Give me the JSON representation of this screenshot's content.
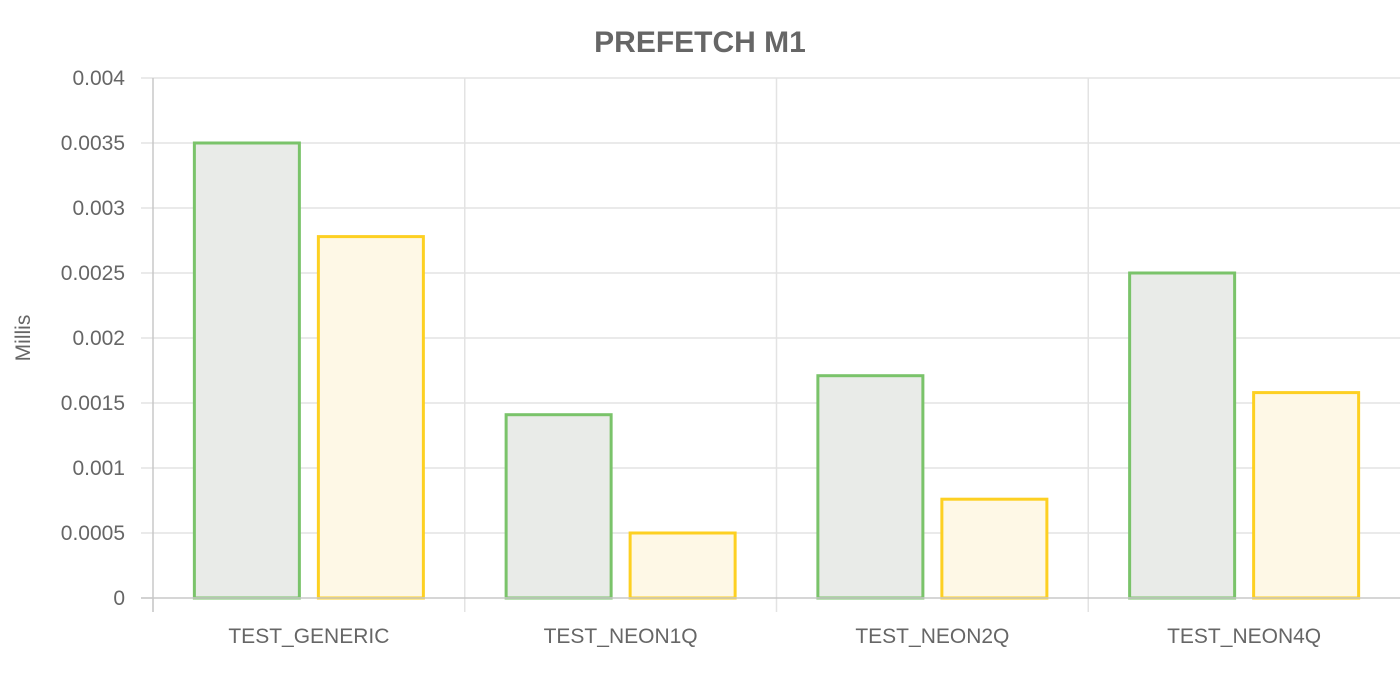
{
  "chart_data": {
    "type": "bar",
    "title": "PREFETCH M1",
    "xlabel": "",
    "ylabel": "Millis",
    "categories": [
      "TEST_GENERIC",
      "TEST_NEON1Q",
      "TEST_NEON2Q",
      "TEST_NEON4Q"
    ],
    "series": [
      {
        "values": [
          0.0035,
          0.00141,
          0.00171,
          0.0025
        ],
        "border_color": "#7ac36a",
        "fill_color": "#e9ebe8"
      },
      {
        "values": [
          0.00278,
          0.0005,
          0.00076,
          0.00158
        ],
        "border_color": "#fdd022",
        "fill_color": "#fef8e6"
      }
    ],
    "y_ticks": [
      "0",
      "0.0005",
      "0.001",
      "0.0015",
      "0.002",
      "0.0025",
      "0.003",
      "0.0035",
      "0.004"
    ],
    "ylim": [
      0,
      0.004
    ],
    "grid": true,
    "legend": "none"
  }
}
